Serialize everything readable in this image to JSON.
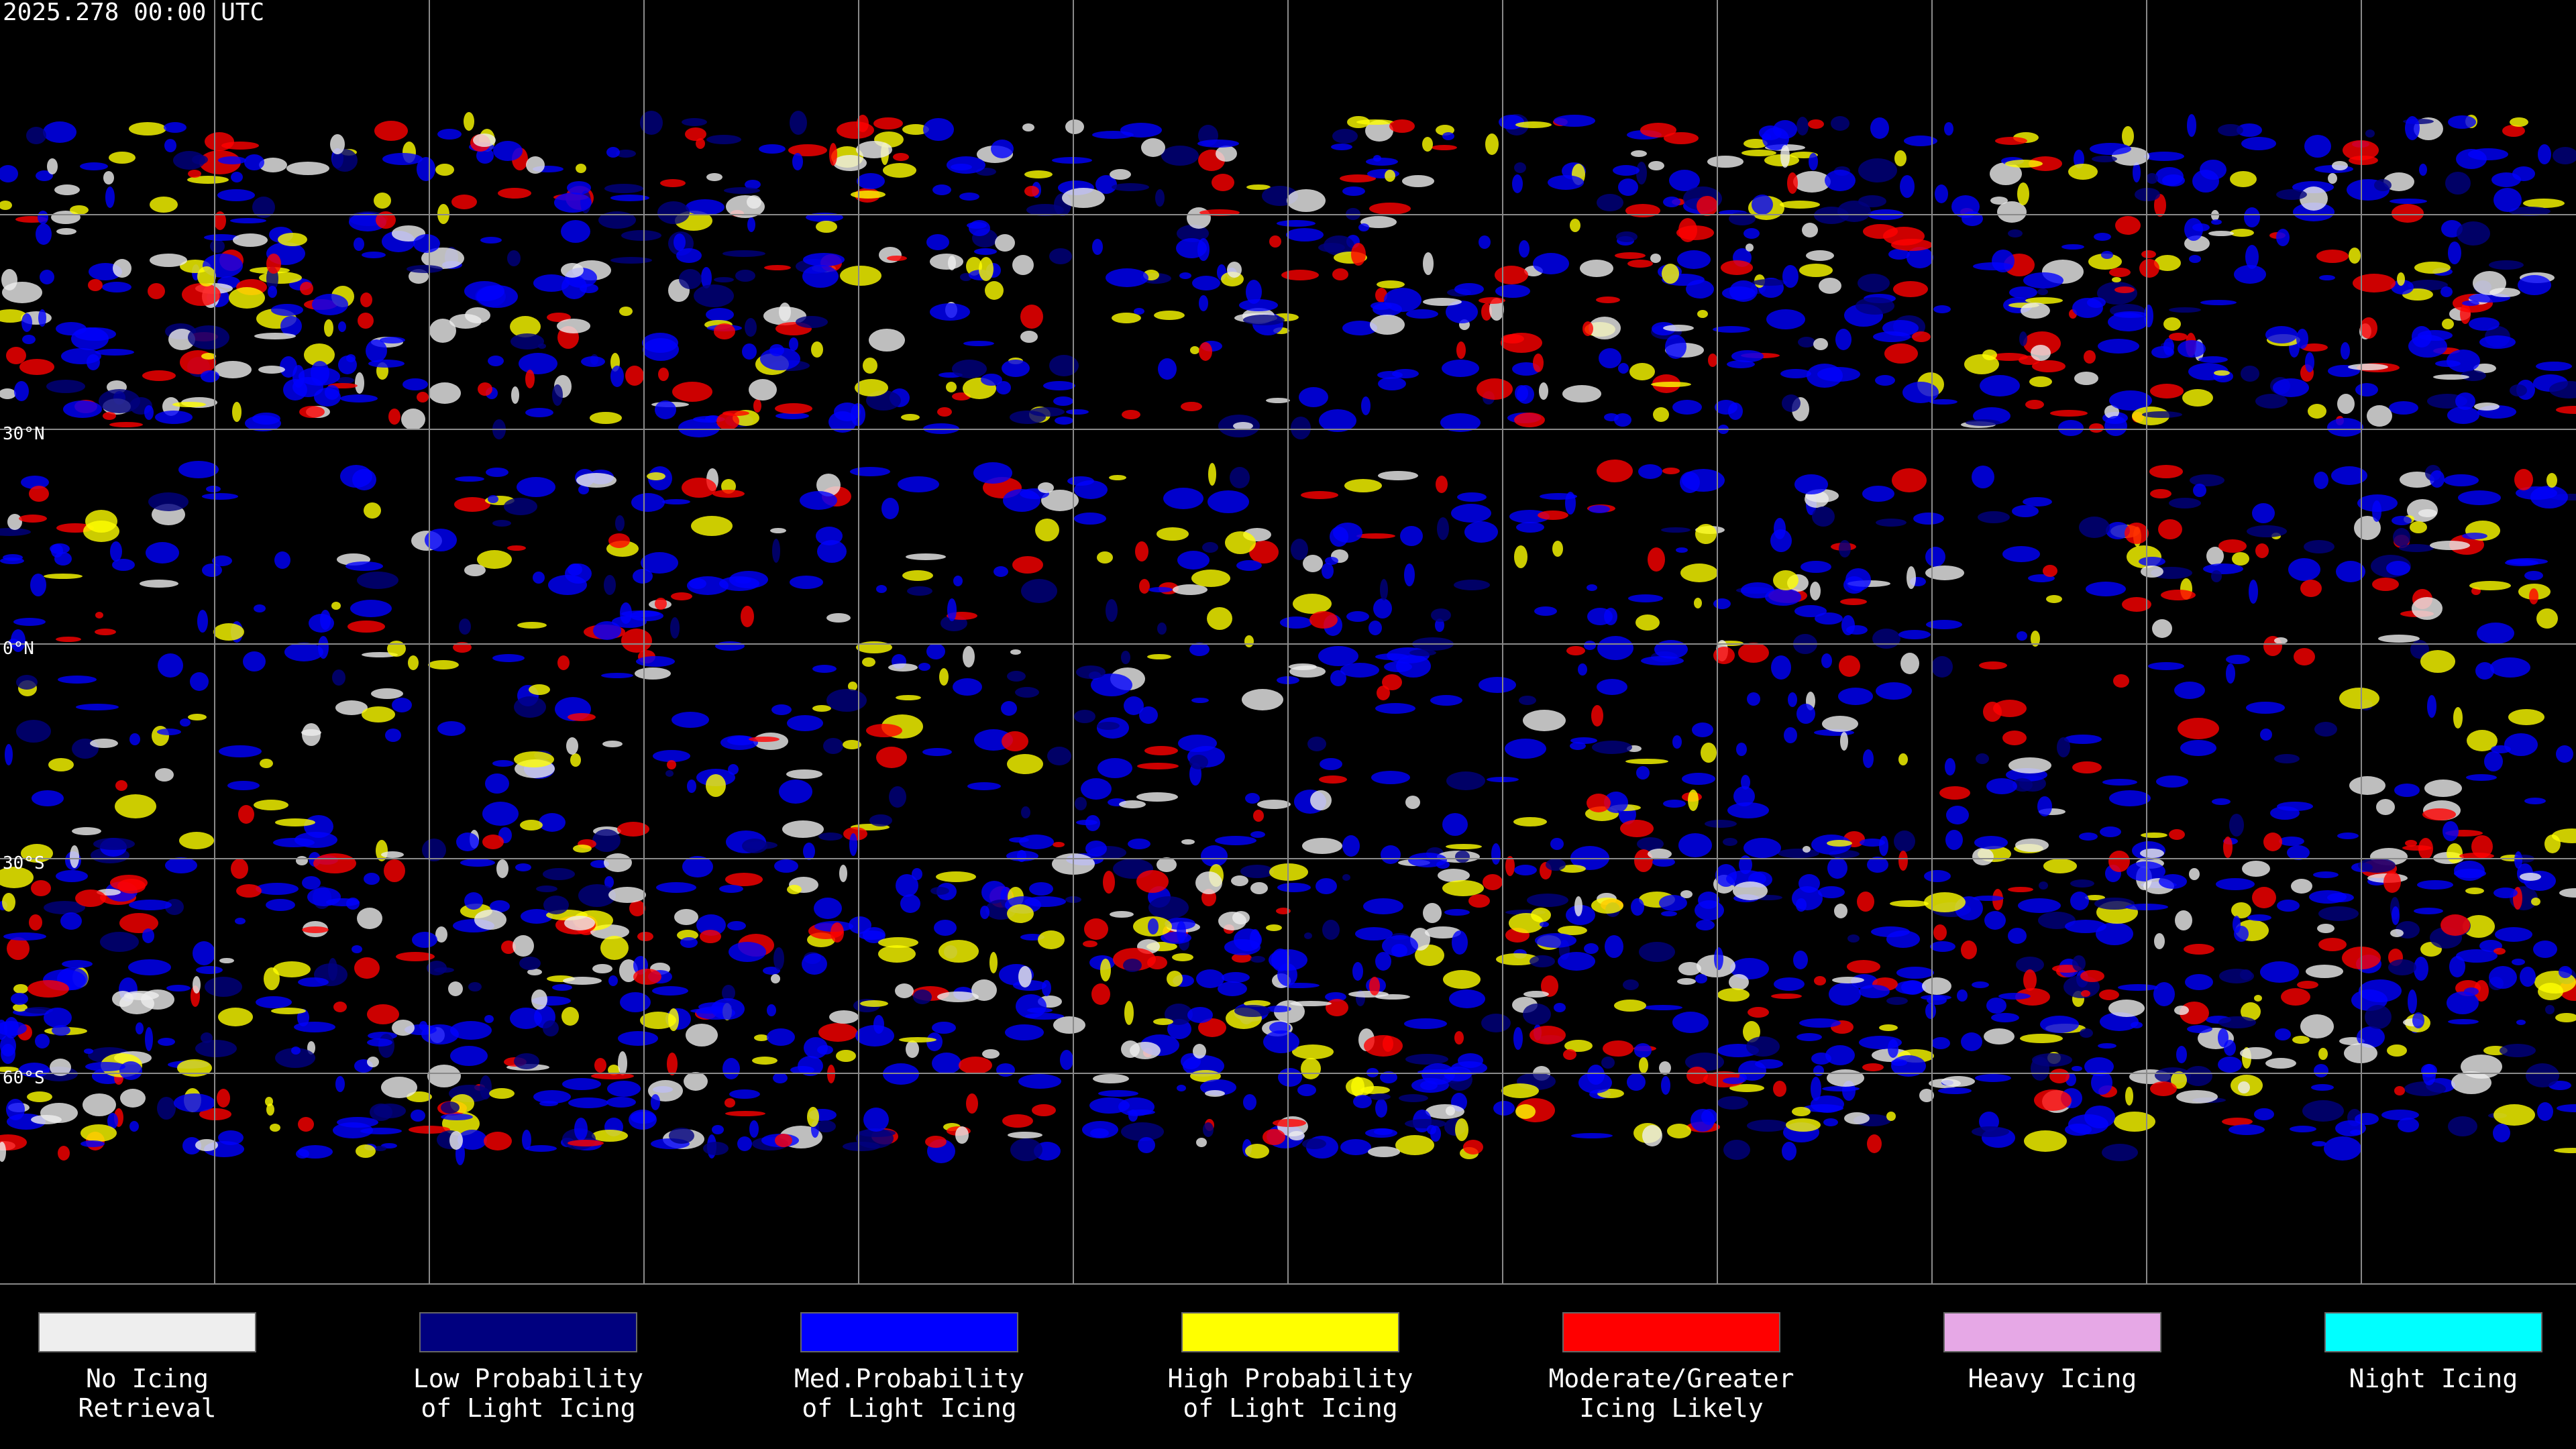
{
  "header": {
    "timestamp": "2025.278 00:00 UTC"
  },
  "map": {
    "latitude_labels": [
      "30°N",
      "0°N",
      "30°S",
      "60°S"
    ]
  },
  "legend": {
    "items": [
      {
        "label": [
          "No Icing",
          "Retrieval"
        ],
        "color": "#eeeeee"
      },
      {
        "label": [
          "Low Probability",
          "of Light Icing"
        ],
        "color": "#00007f"
      },
      {
        "label": [
          "Med.Probability",
          "of Light Icing"
        ],
        "color": "#0000ff"
      },
      {
        "label": [
          "High Probability",
          "of Light Icing"
        ],
        "color": "#ffff00"
      },
      {
        "label": [
          "Moderate/Greater",
          "Icing Likely"
        ],
        "color": "#ff0000"
      },
      {
        "label": [
          "Heavy Icing"
        ],
        "color": "#e6a8e6"
      },
      {
        "label": [
          "Night Icing"
        ],
        "color": "#00ffff"
      }
    ]
  }
}
